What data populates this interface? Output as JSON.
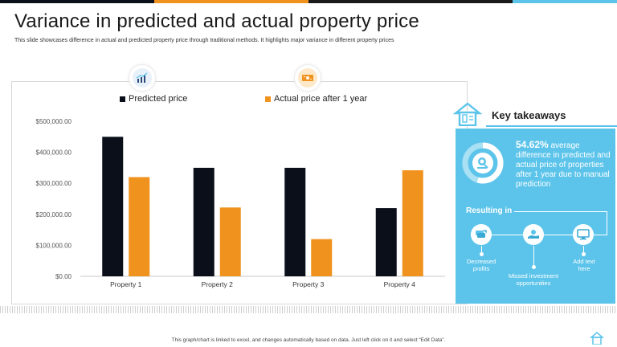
{
  "page": {
    "title": "Variance in predicted and actual property price",
    "subtitle": "This slide showcases difference in actual and predicted property price through traditional methods. It highlights major variance in different property prices",
    "footer": "This graph/chart is linked to excel, and changes automatically based on data. Just left click on it and select “Edit Data”."
  },
  "colors": {
    "predicted": "#0b0f1a",
    "actual": "#f0921e",
    "accent": "#5cc4ea"
  },
  "icons": {
    "predicted_icon": "chart-growth-icon",
    "actual_icon": "money-icon",
    "takeaway_icon": "house-icon",
    "donut_icon": "magnifier-icon"
  },
  "chart_data": {
    "type": "bar",
    "categories": [
      "Property 1",
      "Property 2",
      "Property 3",
      "Property 4"
    ],
    "series": [
      {
        "name": "Predicted price",
        "values": [
          450000,
          350000,
          350000,
          220000
        ]
      },
      {
        "name": "Actual price after 1 year",
        "values": [
          320000,
          222000,
          120000,
          342000
        ]
      }
    ],
    "yticks": [
      "$0.00",
      "$100,000.00",
      "$200,000.00",
      "$300,000.00",
      "$400,000.00",
      "$500,000.00"
    ],
    "ylim": [
      0,
      500000
    ],
    "grid": false,
    "legend_position": "top"
  },
  "takeaways": {
    "title": "Key takeaways",
    "percent": "54.62%",
    "line1": " average",
    "rest": "difference in predicted and actual price of properties after 1 year due to manual prediction",
    "resulting_label": "Resulting in",
    "results": [
      {
        "label": "Decreased profits",
        "icon": "cash-decrease-icon"
      },
      {
        "label": "Missed investment opportunities",
        "icon": "hand-money-icon"
      },
      {
        "label": "Add text here",
        "icon": "monitor-icon"
      }
    ]
  }
}
